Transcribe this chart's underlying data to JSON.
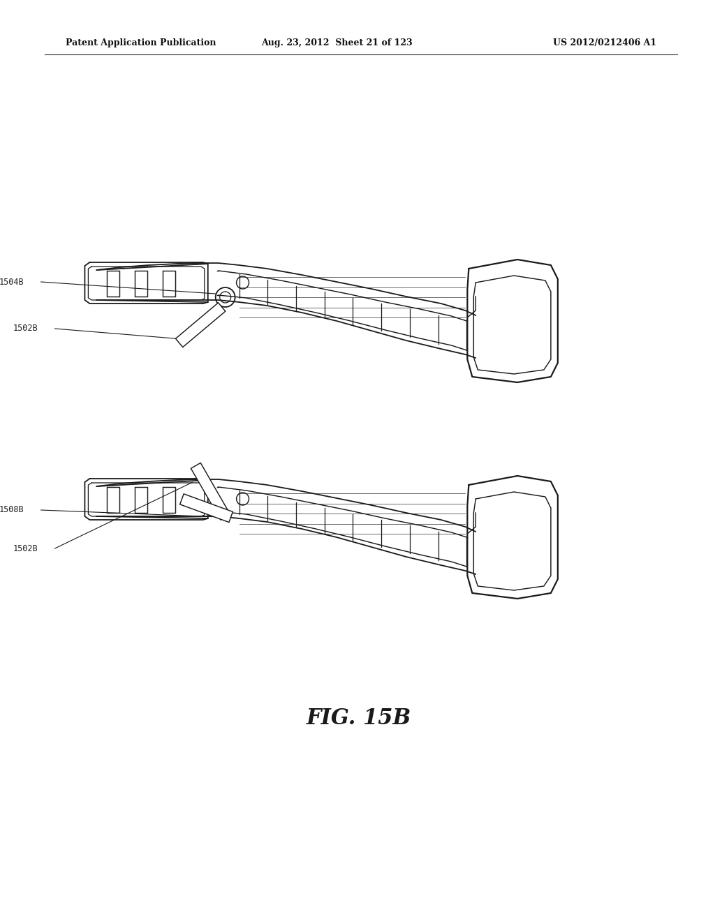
{
  "patent_header_left": "Patent Application Publication",
  "patent_header_mid": "Aug. 23, 2012  Sheet 21 of 123",
  "patent_header_right": "US 2012/0212406 A1",
  "background_color": "#ffffff",
  "line_color": "#1a1a1a",
  "top_label1": "1504B",
  "top_label2": "1502B",
  "bot_label1": "1508B",
  "bot_label2": "1502B",
  "fig_label": "FIG. 15B"
}
